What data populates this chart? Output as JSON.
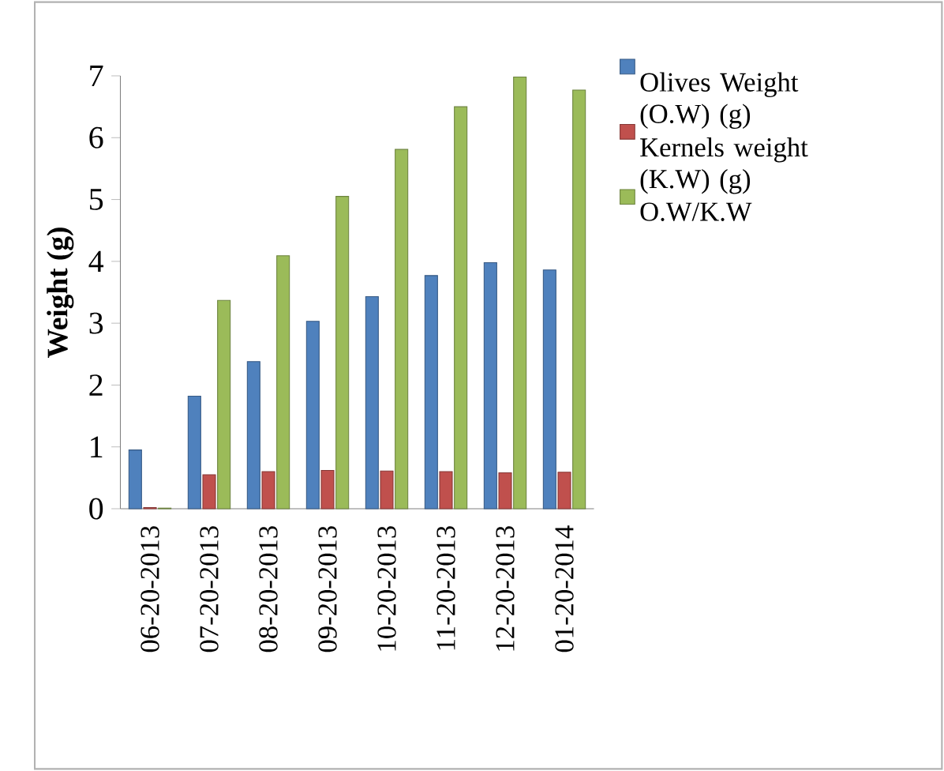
{
  "chart_data": {
    "type": "bar",
    "ylabel": "Weight (g)",
    "categories": [
      "06-20-2013",
      "07-20-2013",
      "08-20-2013",
      "09-20-2013",
      "10-20-2013",
      "11-20-2013",
      "12-20-2013",
      "01-20-2014"
    ],
    "series": [
      {
        "name": "Olives Weight (O.W) (g)",
        "color": "#4f81bd",
        "values": [
          0.95,
          1.82,
          2.38,
          3.03,
          3.43,
          3.77,
          3.98,
          3.86
        ]
      },
      {
        "name": "Kernels weight (K.W) (g)",
        "color": "#c0504d",
        "values": [
          0.02,
          0.55,
          0.6,
          0.62,
          0.61,
          0.6,
          0.58,
          0.59
        ]
      },
      {
        "name": "O.W/K.W",
        "color": "#9bbb59",
        "values": [
          0.01,
          3.37,
          4.09,
          5.05,
          5.81,
          6.5,
          6.98,
          6.77
        ]
      }
    ],
    "ylim": [
      0,
      7
    ],
    "yticks": [
      0,
      1,
      2,
      3,
      4,
      5,
      6,
      7
    ],
    "grid": false,
    "legend": "right"
  }
}
